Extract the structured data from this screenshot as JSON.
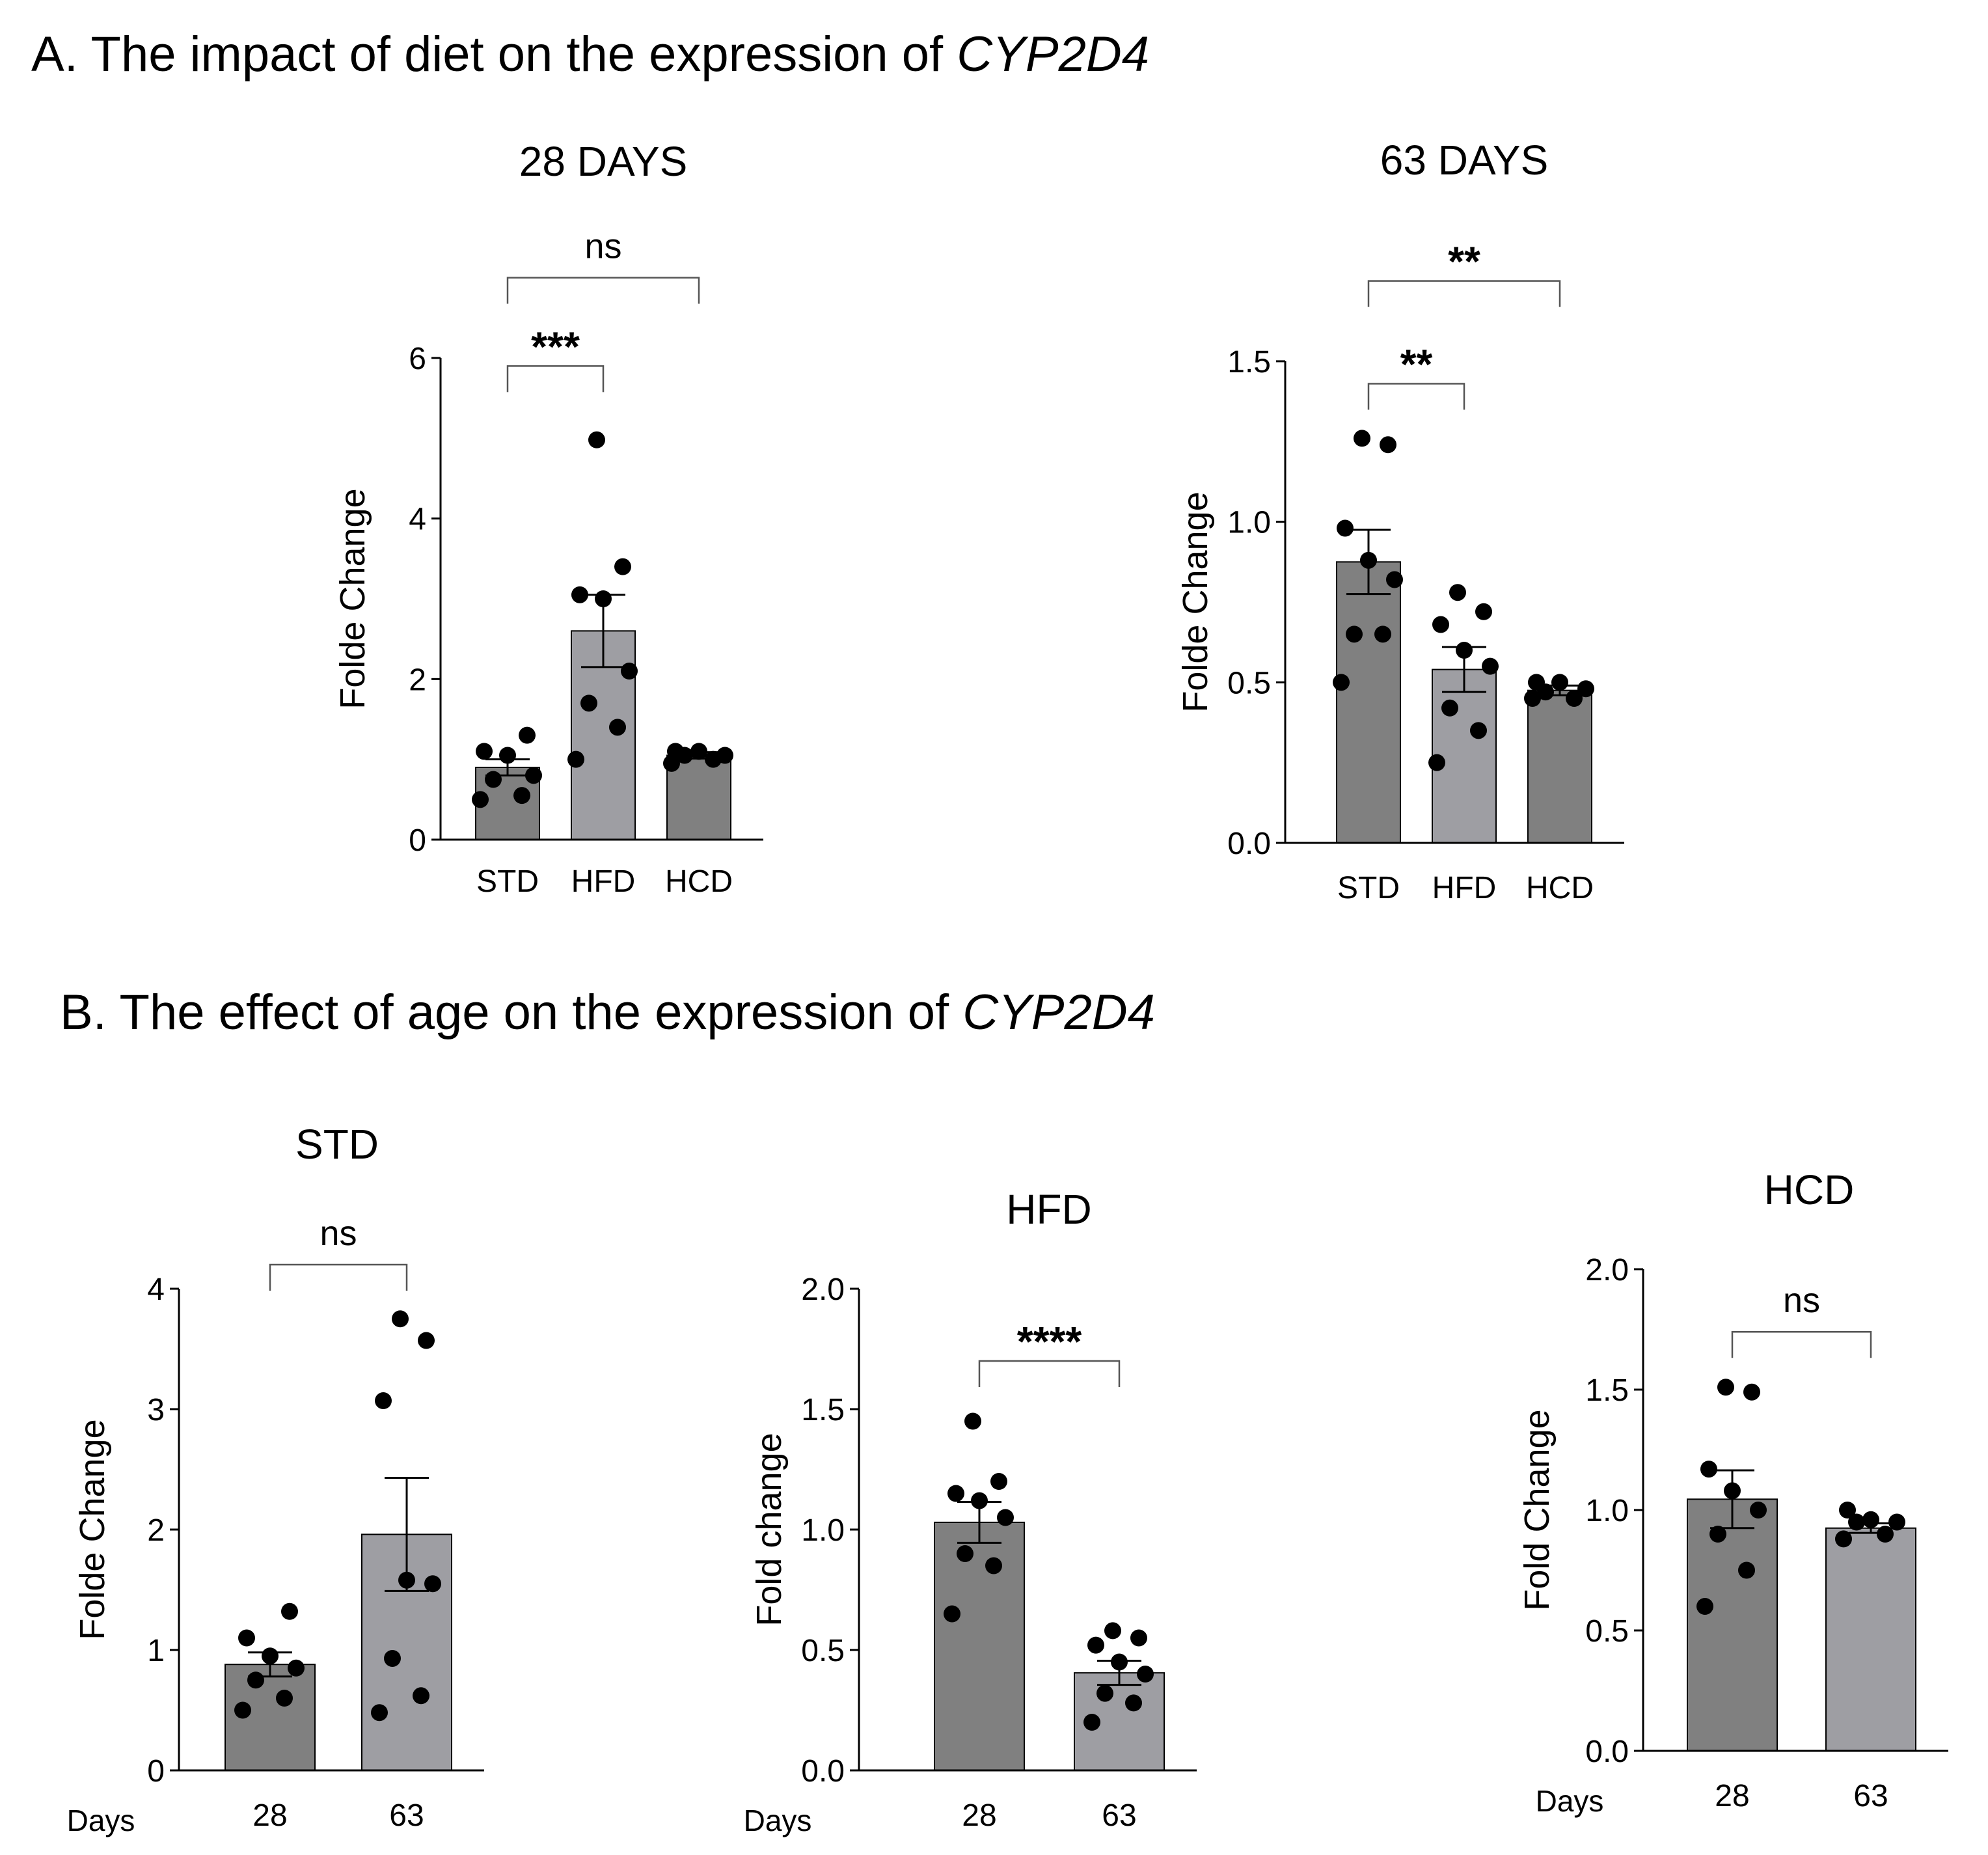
{
  "section_a": {
    "title_prefix": "A. The impact of diet on the expression of ",
    "gene": "CYP2D4"
  },
  "section_b": {
    "title_prefix": "B. The effect of age on the expression of ",
    "gene": "CYP2D4"
  },
  "chart_data": [
    {
      "id": "a28",
      "type": "bar",
      "title": "28 DAYS",
      "ylabel": "Folde Change",
      "xlabel": "",
      "ylim": [
        0,
        6
      ],
      "yticks": [
        0,
        2,
        4,
        6
      ],
      "ytick_labels": [
        "0",
        "2",
        "4",
        "6"
      ],
      "categories": [
        "STD",
        "HFD",
        "HCD"
      ],
      "bar_colors": [
        "#808080",
        "#9e9ea3",
        "#808080"
      ],
      "values": [
        0.9,
        2.6,
        1.05
      ],
      "sem": [
        0.1,
        0.45,
        0.04
      ],
      "points": [
        [
          0.5,
          0.55,
          0.75,
          0.8,
          1.05,
          1.1,
          1.3
        ],
        [
          1.0,
          1.4,
          1.7,
          2.1,
          3.0,
          3.05,
          3.4,
          4.98
        ],
        [
          0.95,
          1.0,
          1.05,
          1.05,
          1.1,
          1.1
        ]
      ],
      "comparisons": [
        {
          "from": 0,
          "to": 2,
          "label": "ns",
          "y": 7.0
        },
        {
          "from": 0,
          "to": 1,
          "label": "***",
          "y": 5.9
        }
      ]
    },
    {
      "id": "a63",
      "type": "bar",
      "title": "63 DAYS",
      "ylabel": "Folde Change",
      "xlabel": "",
      "ylim": [
        0,
        1.5
      ],
      "yticks": [
        0,
        0.5,
        1.0,
        1.5
      ],
      "ytick_labels": [
        "0.0",
        "0.5",
        "1.0",
        "1.5"
      ],
      "categories": [
        "STD",
        "HFD",
        "HCD"
      ],
      "bar_colors": [
        "#808080",
        "#9e9ea3",
        "#808080"
      ],
      "values": [
        0.875,
        0.54,
        0.475
      ],
      "sem": [
        0.1,
        0.07,
        0.015
      ],
      "points": [
        [
          0.5,
          0.65,
          0.65,
          0.82,
          0.88,
          0.98,
          1.24,
          1.26
        ],
        [
          0.25,
          0.35,
          0.42,
          0.55,
          0.6,
          0.68,
          0.72,
          0.78
        ],
        [
          0.45,
          0.45,
          0.47,
          0.48,
          0.5,
          0.5
        ]
      ],
      "comparisons": [
        {
          "from": 0,
          "to": 2,
          "label": "**",
          "y": 1.75
        },
        {
          "from": 0,
          "to": 1,
          "label": "**",
          "y": 1.43
        }
      ]
    },
    {
      "id": "bstd",
      "type": "bar",
      "title": "STD",
      "ylabel": "Folde Change",
      "xlabel": "Days",
      "ylim": [
        0,
        4
      ],
      "yticks": [
        0,
        1,
        2,
        3,
        4
      ],
      "ytick_labels": [
        "0",
        "1",
        "2",
        "3",
        "4"
      ],
      "categories": [
        "28",
        "63"
      ],
      "bar_colors": [
        "#808080",
        "#9e9ea3"
      ],
      "values": [
        0.88,
        1.96
      ],
      "sem": [
        0.1,
        0.47
      ],
      "points": [
        [
          0.5,
          0.6,
          0.75,
          0.85,
          0.95,
          1.1,
          1.32
        ],
        [
          0.48,
          0.62,
          0.93,
          1.55,
          1.58,
          3.07,
          3.57,
          3.75
        ]
      ],
      "comparisons": [
        {
          "from": 0,
          "to": 1,
          "label": "ns",
          "y": 4.2
        }
      ]
    },
    {
      "id": "bhfd",
      "type": "bar",
      "title": "HFD",
      "ylabel": "Fold change",
      "xlabel": "Days",
      "ylim": [
        0,
        2
      ],
      "yticks": [
        0,
        0.5,
        1.0,
        1.5,
        2.0
      ],
      "ytick_labels": [
        "0.0",
        "0.5",
        "1.0",
        "1.5",
        "2.0"
      ],
      "categories": [
        "28",
        "63"
      ],
      "bar_colors": [
        "#808080",
        "#9e9ea3"
      ],
      "values": [
        1.03,
        0.405
      ],
      "sem": [
        0.085,
        0.05
      ],
      "points": [
        [
          0.65,
          0.85,
          0.9,
          1.05,
          1.12,
          1.15,
          1.2,
          1.45
        ],
        [
          0.2,
          0.28,
          0.32,
          0.4,
          0.45,
          0.52,
          0.55,
          0.58
        ]
      ],
      "comparisons": [
        {
          "from": 0,
          "to": 1,
          "label": "****",
          "y": 1.7
        }
      ]
    },
    {
      "id": "bhcd",
      "type": "bar",
      "title": "HCD",
      "ylabel": "Fold Change",
      "xlabel": "Days",
      "ylim": [
        0,
        2
      ],
      "yticks": [
        0,
        0.5,
        1.0,
        1.5,
        2.0
      ],
      "ytick_labels": [
        "0.0",
        "0.5",
        "1.0",
        "1.5",
        "2.0"
      ],
      "categories": [
        "28",
        "63"
      ],
      "bar_colors": [
        "#808080",
        "#9e9ea3"
      ],
      "values": [
        1.045,
        0.925
      ],
      "sem": [
        0.12,
        0.02
      ],
      "points": [
        [
          0.6,
          0.75,
          0.9,
          1.0,
          1.08,
          1.17,
          1.49,
          1.51
        ],
        [
          0.88,
          0.9,
          0.95,
          0.95,
          0.96,
          1.0
        ]
      ],
      "comparisons": [
        {
          "from": 0,
          "to": 1,
          "label": "ns",
          "y": 1.74
        }
      ]
    }
  ]
}
